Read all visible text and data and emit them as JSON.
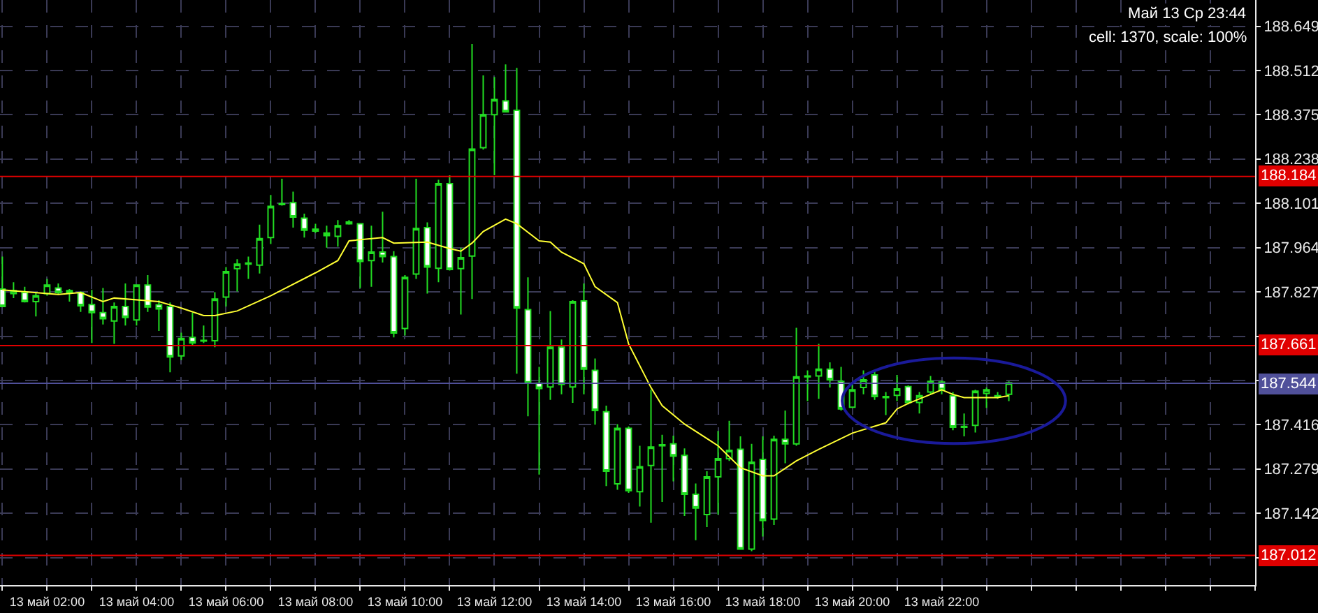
{
  "chart_data": {
    "type": "candlestick",
    "annotations": [
      "Май 13 Ср 23:44",
      "cell: 1370, scale: 100%"
    ],
    "categories": [
      null,
      null,
      null,
      null,
      "13 май 02:00",
      null,
      null,
      null,
      null,
      null,
      null,
      null,
      "13 май 04:00",
      null,
      null,
      null,
      null,
      null,
      null,
      null,
      "13 май 06:00",
      null,
      null,
      null,
      null,
      null,
      null,
      null,
      "13 май 08:00",
      null,
      null,
      null,
      null,
      null,
      null,
      null,
      "13 май 10:00",
      null,
      null,
      null,
      null,
      null,
      null,
      null,
      "13 май 12:00",
      null,
      null,
      null,
      null,
      null,
      null,
      null,
      "13 май 14:00",
      null,
      null,
      null,
      null,
      null,
      null,
      null,
      "13 май 16:00",
      null,
      null,
      null,
      null,
      null,
      null,
      null,
      "13 май 18:00",
      null,
      null,
      null,
      null,
      null,
      null,
      null,
      "13 май 20:00",
      null,
      null,
      null,
      null,
      null,
      null,
      null,
      "13 май 22:00",
      null,
      null,
      null,
      null,
      null,
      null
    ],
    "ohlc": [
      [
        187.836,
        187.936,
        187.78,
        187.782
      ],
      [
        187.822,
        187.857,
        187.808,
        187.831
      ],
      [
        187.825,
        187.843,
        187.794,
        187.797
      ],
      [
        187.797,
        187.825,
        187.751,
        187.815
      ],
      [
        187.822,
        187.867,
        187.815,
        187.848
      ],
      [
        187.839,
        187.853,
        187.819,
        187.825
      ],
      [
        187.825,
        187.836,
        187.797,
        187.831
      ],
      [
        187.825,
        187.829,
        187.765,
        187.784
      ],
      [
        187.788,
        187.833,
        187.669,
        187.763
      ],
      [
        187.763,
        187.839,
        187.726,
        187.744
      ],
      [
        187.737,
        187.794,
        187.666,
        187.782
      ],
      [
        187.782,
        187.853,
        187.723,
        187.748
      ],
      [
        187.74,
        187.85,
        187.723,
        187.848
      ],
      [
        187.848,
        187.879,
        187.765,
        187.78
      ],
      [
        187.787,
        187.801,
        187.706,
        187.774
      ],
      [
        187.782,
        187.794,
        187.578,
        187.626
      ],
      [
        187.629,
        187.701,
        187.616,
        187.683
      ],
      [
        187.686,
        187.763,
        187.663,
        187.669
      ],
      [
        187.675,
        187.723,
        187.669,
        187.677
      ],
      [
        187.676,
        187.826,
        187.656,
        187.805
      ],
      [
        187.811,
        187.904,
        187.782,
        187.89
      ],
      [
        187.899,
        187.928,
        187.828,
        187.913
      ],
      [
        187.913,
        187.936,
        187.867,
        187.916
      ],
      [
        187.91,
        188.035,
        187.884,
        187.992
      ],
      [
        187.995,
        188.127,
        187.975,
        188.092
      ],
      [
        188.1,
        188.177,
        188.094,
        188.097
      ],
      [
        188.103,
        188.137,
        188.026,
        188.058
      ],
      [
        188.055,
        188.069,
        187.995,
        188.018
      ],
      [
        188.015,
        188.038,
        188.009,
        188.021
      ],
      [
        188.009,
        188.032,
        187.964,
        188.001
      ],
      [
        187.999,
        188.049,
        187.967,
        188.032
      ],
      [
        188.038,
        188.049,
        188.035,
        188.043
      ],
      [
        188.038,
        188.038,
        187.839,
        187.921
      ],
      [
        187.924,
        188.032,
        187.843,
        187.95
      ],
      [
        187.95,
        188.075,
        187.918,
        187.936
      ],
      [
        187.936,
        187.953,
        187.686,
        187.7
      ],
      [
        187.714,
        187.879,
        187.692,
        187.872
      ],
      [
        187.882,
        188.177,
        187.867,
        188.023
      ],
      [
        188.026,
        188.042,
        187.822,
        187.904
      ],
      [
        187.9,
        188.174,
        187.857,
        188.162
      ],
      [
        188.162,
        188.188,
        187.893,
        187.896
      ],
      [
        187.899,
        187.964,
        187.757,
        187.933
      ],
      [
        187.938,
        188.594,
        187.805,
        188.269
      ],
      [
        188.273,
        188.497,
        188.267,
        188.375
      ],
      [
        188.375,
        188.492,
        188.188,
        188.422
      ],
      [
        188.418,
        188.531,
        188.384,
        188.384
      ],
      [
        188.389,
        188.52,
        187.574,
        187.777
      ],
      [
        187.772,
        187.872,
        187.442,
        187.545
      ],
      [
        187.545,
        187.595,
        187.262,
        187.528
      ],
      [
        187.533,
        187.768,
        187.493,
        187.656
      ],
      [
        187.656,
        187.68,
        187.51,
        187.541
      ],
      [
        187.533,
        187.801,
        187.484,
        187.797
      ],
      [
        187.799,
        187.853,
        187.51,
        187.588
      ],
      [
        187.584,
        187.621,
        187.416,
        187.46
      ],
      [
        187.456,
        187.475,
        187.226,
        187.272
      ],
      [
        187.233,
        187.418,
        187.215,
        187.405
      ],
      [
        187.405,
        187.411,
        187.205,
        187.212
      ],
      [
        187.209,
        187.351,
        187.163,
        187.286
      ],
      [
        187.29,
        187.524,
        187.113,
        187.347
      ],
      [
        187.351,
        187.385,
        187.177,
        187.354
      ],
      [
        187.357,
        187.382,
        187.241,
        187.319
      ],
      [
        187.321,
        187.343,
        187.134,
        187.201
      ],
      [
        187.201,
        187.234,
        187.059,
        187.158
      ],
      [
        187.138,
        187.272,
        187.099,
        187.255
      ],
      [
        187.255,
        187.397,
        187.138,
        187.311
      ],
      [
        187.311,
        187.428,
        187.304,
        187.337
      ],
      [
        187.34,
        187.38,
        187.031,
        187.031
      ],
      [
        187.031,
        187.357,
        187.025,
        187.3
      ],
      [
        187.309,
        187.38,
        187.07,
        187.12
      ],
      [
        187.124,
        187.382,
        187.106,
        187.371
      ],
      [
        187.371,
        187.46,
        187.297,
        187.357
      ],
      [
        187.357,
        187.716,
        187.351,
        187.564
      ],
      [
        187.564,
        187.584,
        187.489,
        187.567
      ],
      [
        187.567,
        187.666,
        187.496,
        187.588
      ],
      [
        187.588,
        187.609,
        187.531,
        187.555
      ],
      [
        187.55,
        187.595,
        187.46,
        187.465
      ],
      [
        187.47,
        187.546,
        187.468,
        187.524
      ],
      [
        187.531,
        187.584,
        187.51,
        187.555
      ],
      [
        187.57,
        187.584,
        187.493,
        187.503
      ],
      [
        187.503,
        187.517,
        187.446,
        187.5
      ],
      [
        187.507,
        187.57,
        187.489,
        187.527
      ],
      [
        187.534,
        187.538,
        187.479,
        187.485
      ],
      [
        187.485,
        187.517,
        187.451,
        187.506
      ],
      [
        187.517,
        187.567,
        187.51,
        187.55
      ],
      [
        187.548,
        187.553,
        187.51,
        187.524
      ],
      [
        187.506,
        187.517,
        187.399,
        187.408
      ],
      [
        187.408,
        187.451,
        187.38,
        187.411
      ],
      [
        187.414,
        187.524,
        187.392,
        187.52
      ],
      [
        187.513,
        187.531,
        187.468,
        187.524
      ],
      [
        187.503,
        187.517,
        187.496,
        187.506
      ],
      [
        187.51,
        187.55,
        187.489,
        187.546
      ]
    ],
    "series": [
      {
        "type": "line",
        "color": "#ffff33",
        "values": [
          187.833,
          null,
          null,
          null,
          null,
          187.819,
          null,
          187.825,
          null,
          187.797,
          187.808,
          null,
          null,
          null,
          187.797,
          187.787,
          187.777,
          null,
          187.754,
          187.754,
          null,
          187.768,
          null,
          null,
          187.815,
          187.833,
          null,
          null,
          187.886,
          null,
          187.924,
          187.985,
          null,
          null,
          187.995,
          187.978,
          null,
          null,
          187.981,
          null,
          187.961,
          187.953,
          187.978,
          188.014,
          null,
          188.052,
          188.038,
          null,
          187.985,
          187.981,
          187.95,
          null,
          187.914,
          187.843,
          null,
          187.794,
          187.666,
          null,
          187.531,
          187.475,
          null,
          187.418,
          null,
          null,
          187.351,
          null,
          187.283,
          null,
          187.258,
          187.258,
          null,
          187.304,
          null,
          187.34,
          null,
          null,
          187.39,
          null,
          null,
          187.422,
          187.465,
          187.482,
          null,
          187.51,
          187.524,
          187.51,
          187.5,
          null,
          null,
          187.5,
          187.506
        ]
      }
    ],
    "ref_lines": [
      {
        "axis": "y",
        "value": 188.184,
        "label": "188.184",
        "color": "#e00000"
      },
      {
        "axis": "y",
        "value": 187.661,
        "label": "187.661",
        "color": "#e00000"
      },
      {
        "axis": "y",
        "value": 187.012,
        "label": "187.012",
        "color": "#e00000"
      },
      {
        "axis": "y",
        "value": 187.544,
        "label": "187.544",
        "color": "#50509a"
      }
    ],
    "ylim": [
      186.92,
      188.73
    ],
    "yticks": [
      {
        "value": 187.005,
        "label": null
      },
      187.142,
      187.279,
      187.416,
      {
        "value": 187.553,
        "label": null
      },
      {
        "value": 187.69,
        "label": null
      },
      187.827,
      187.964,
      188.101,
      188.238,
      188.375,
      188.512,
      188.649
    ],
    "grid": true
  }
}
